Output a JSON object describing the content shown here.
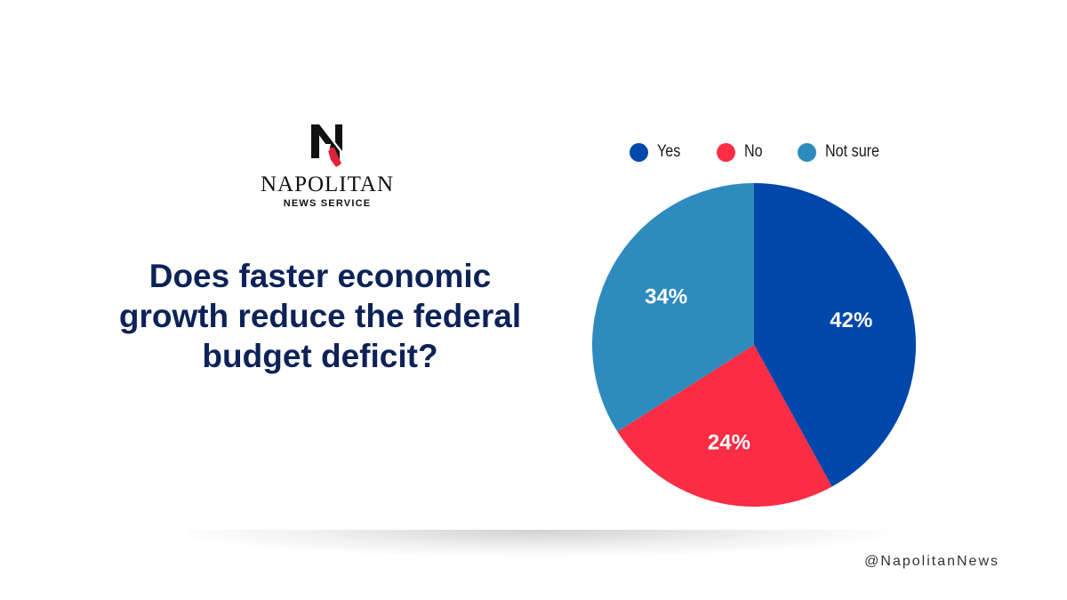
{
  "brand": {
    "name": "NAPOLITAN",
    "subtitle": "NEWS SERVICE"
  },
  "question": "Does faster economic growth reduce the federal budget deficit?",
  "handle": "@NapolitanNews",
  "colors": {
    "yes": "#0047ab",
    "no": "#fa2d44",
    "not_sure": "#2e8bbd",
    "question_text": "#0d2257"
  },
  "chart_data": {
    "type": "pie",
    "categories": [
      "Yes",
      "No",
      "Not sure"
    ],
    "values": [
      42,
      24,
      34
    ],
    "labels": [
      "42%",
      "24%",
      "34%"
    ],
    "colors": [
      "#0047ab",
      "#fa2d44",
      "#2e8bbd"
    ],
    "legend_position": "top"
  }
}
